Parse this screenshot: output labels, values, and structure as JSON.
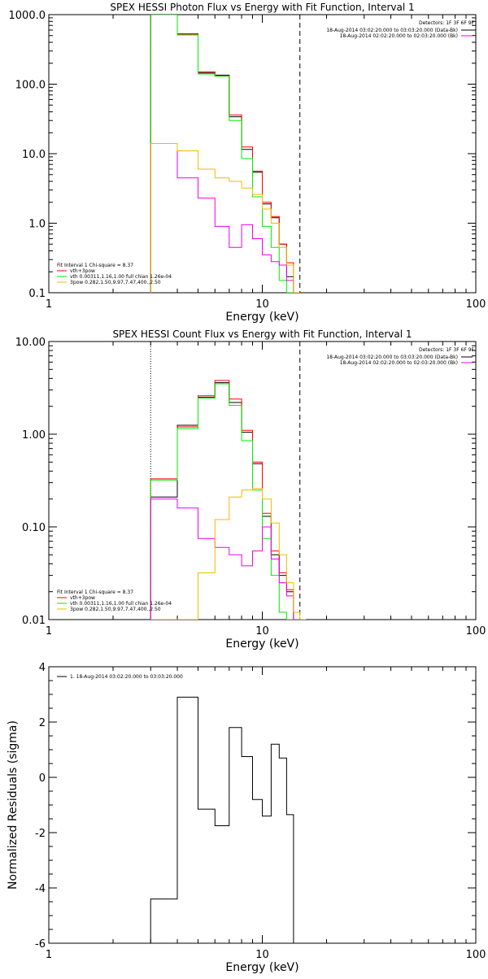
{
  "colors": {
    "background": "#ffffff",
    "black": "#000000",
    "red": "#ff0000",
    "green": "#00ee00",
    "magenta": "#ee00ee",
    "orange": "#eebb00"
  },
  "chart_data": [
    {
      "type": "line",
      "step": true,
      "title": "SPEX HESSI Photon Flux vs Energy with Fit Function, Interval 1",
      "xlabel": "Energy (keV)",
      "ylabel": "",
      "xscale": "log",
      "yscale": "log",
      "xlim": [
        1,
        100
      ],
      "ylim": [
        0.1,
        1000
      ],
      "xticks": [
        1,
        10,
        100
      ],
      "xtick_labels": [
        "1",
        "10",
        "100"
      ],
      "yticks": [
        0.1,
        1,
        10,
        100,
        1000
      ],
      "ytick_labels": [
        "0.1",
        "1.0",
        "10.0",
        "100.0",
        "1000.0"
      ],
      "vlines": [
        {
          "x": 3,
          "style": "dotted"
        },
        {
          "x": 15,
          "style": "dashed"
        }
      ],
      "detectors": "Detectors: 1F 3F 6F 9F",
      "legend_top": [
        {
          "label": "18-Aug-2014 03:02:20.000 to 03:03:20.000 (Data-Bk)",
          "color": "#000000"
        },
        {
          "label": "18-Aug-2014 02:02:20.000 to 02:03:20.000 (Bk)",
          "color": "#ee00ee"
        }
      ],
      "fit_info": "Fit Interval 1   Chi-square = 8.37",
      "legend_bottom": [
        {
          "label": "vth+3pow",
          "color": "#ff0000"
        },
        {
          "label": "vth 0.00311,1.16,1.00  full chian 1.26e-04",
          "color": "#00ee00"
        },
        {
          "label": "3pow 0.282,1.50,9.97,7.47,400.,2.50",
          "color": "#eebb00"
        }
      ],
      "edges": [
        3,
        4,
        5,
        6,
        7,
        8,
        9,
        10,
        11,
        12,
        13,
        14,
        15
      ],
      "series": [
        {
          "color": "#000000",
          "values": [
            1000,
            530,
            145,
            135,
            34,
            11.5,
            5.4,
            1.9,
            1.2,
            0.5,
            0.17,
            0.1
          ]
        },
        {
          "color": "#ff0000",
          "values": [
            1000,
            525,
            150,
            132,
            36,
            12.5,
            5.6,
            2.0,
            1.25,
            0.5,
            0.27,
            0.1
          ]
        },
        {
          "color": "#00ee00",
          "values": [
            1000,
            510,
            140,
            130,
            30,
            8.5,
            2.4,
            0.9,
            0.45,
            0.15,
            0.1,
            0.1
          ]
        },
        {
          "color": "#ee00ee",
          "values": [
            14,
            4.5,
            2.3,
            0.9,
            0.45,
            0.95,
            0.6,
            0.35,
            0.28,
            0.25,
            0.15,
            0.1
          ]
        },
        {
          "color": "#eebb00",
          "values": [
            14,
            11,
            6,
            4.5,
            4.0,
            3.2,
            2.6,
            1.6,
            1.0,
            0.45,
            0.25,
            0.1
          ]
        }
      ]
    },
    {
      "type": "line",
      "step": true,
      "title": "SPEX HESSI Count Flux vs Energy with Fit Function, Interval 1",
      "xlabel": "Energy (keV)",
      "ylabel": "",
      "xscale": "log",
      "yscale": "log",
      "xlim": [
        1,
        100
      ],
      "ylim": [
        0.01,
        10
      ],
      "xticks": [
        1,
        10,
        100
      ],
      "xtick_labels": [
        "1",
        "10",
        "100"
      ],
      "yticks": [
        0.01,
        0.1,
        1,
        10
      ],
      "ytick_labels": [
        "0.01",
        "0.10",
        "1.00",
        "10.00"
      ],
      "vlines": [
        {
          "x": 3,
          "style": "dotted"
        },
        {
          "x": 15,
          "style": "dashed"
        }
      ],
      "detectors": "Detectors: 1F 3F 6F 9F",
      "legend_top": [
        {
          "label": "18-Aug-2014 03:02:20.000 to 03:03:20.000 (Data-Bk)",
          "color": "#000000"
        },
        {
          "label": "18-Aug-2014 02:02:20.000 to 02:03:20.000 (Bk)",
          "color": "#ee00ee"
        }
      ],
      "fit_info": "Fit Interval 1   Chi-square = 8.37",
      "legend_bottom": [
        {
          "label": "vth+3pow",
          "color": "#ff0000"
        },
        {
          "label": "vth 0.00311,1.16,1.00  full chian 1.26e-04",
          "color": "#00ee00"
        },
        {
          "label": "3pow 0.282,1.50,9.97,7.47,400.,2.50",
          "color": "#eebb00"
        }
      ],
      "edges": [
        3,
        4,
        5,
        6,
        7,
        8,
        9,
        10,
        11,
        12,
        13,
        14,
        15,
        16
      ],
      "series": [
        {
          "color": "#000000",
          "values": [
            0.21,
            1.25,
            2.5,
            3.6,
            2.2,
            1.05,
            0.48,
            0.13,
            0.05,
            0.03,
            0.02,
            0.01,
            0.01
          ]
        },
        {
          "color": "#ff0000",
          "values": [
            0.33,
            1.2,
            2.6,
            3.8,
            2.4,
            1.1,
            0.5,
            0.14,
            0.055,
            0.032,
            0.021,
            0.01,
            0.01
          ]
        },
        {
          "color": "#00ee00",
          "values": [
            0.32,
            1.15,
            2.45,
            3.5,
            2.05,
            0.85,
            0.25,
            0.075,
            0.03,
            0.012,
            0.01,
            0.01,
            0.01
          ]
        },
        {
          "color": "#ee00ee",
          "values": [
            0.2,
            0.16,
            0.075,
            0.06,
            0.05,
            0.038,
            0.055,
            0.1,
            0.045,
            0.025,
            0.018,
            0.01,
            0.01
          ]
        },
        {
          "color": "#eebb00",
          "values": [
            0.01,
            0.01,
            0.032,
            0.12,
            0.21,
            0.25,
            0.26,
            0.2,
            0.11,
            0.05,
            0.025,
            0.012,
            0.01
          ]
        }
      ]
    },
    {
      "type": "line",
      "step": true,
      "title": "",
      "xlabel": "Energy (keV)",
      "ylabel": "Normalized Residuals (sigma)",
      "xscale": "log",
      "yscale": "linear",
      "xlim": [
        1,
        100
      ],
      "ylim": [
        -6,
        4
      ],
      "xticks": [
        1,
        10,
        100
      ],
      "xtick_labels": [
        "1",
        "10",
        "100"
      ],
      "yticks": [
        -6,
        -4,
        -2,
        0,
        2,
        4
      ],
      "ytick_labels": [
        "-6",
        "-4",
        "-2",
        "0",
        "2",
        "4"
      ],
      "legend": "1. 18-Aug-2014 03:02:20.000 to 03:03:20.000",
      "edges": [
        3,
        4,
        5,
        6,
        7,
        8,
        9,
        10,
        11,
        12,
        13,
        14,
        15
      ],
      "series": [
        {
          "color": "#000000",
          "values": [
            -4.4,
            2.9,
            -1.15,
            -1.75,
            1.8,
            0.75,
            -0.8,
            -1.4,
            1.2,
            0.7,
            -1.35,
            -6
          ]
        }
      ]
    }
  ]
}
